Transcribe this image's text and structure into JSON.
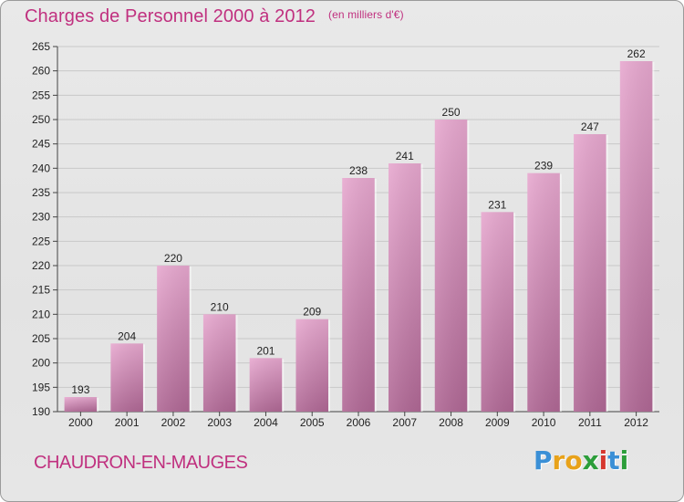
{
  "header": {
    "title": "Charges de Personnel 2000 à 2012",
    "subtitle": "(en milliers d'€)"
  },
  "footer": {
    "location": "CHAUDRON-EN-MAUGES",
    "logo_letters": [
      "P",
      "r",
      "o",
      "x",
      "i",
      "t",
      "i"
    ],
    "logo_colors": [
      "#3a8fd6",
      "#e8a21a",
      "#e8a21a",
      "#2c9e3a",
      "#d6372e",
      "#3a8fd6",
      "#2c9e3a"
    ]
  },
  "colors": {
    "title": "#c0307f",
    "bar_top": "#e7a8cf",
    "bar_bottom": "#b06895",
    "grid": "#c8c8c8"
  },
  "chart_data": {
    "type": "bar",
    "title": "Charges de Personnel 2000 à 2012",
    "subtitle": "(en milliers d'€)",
    "categories": [
      "2000",
      "2001",
      "2002",
      "2003",
      "2004",
      "2005",
      "2006",
      "2007",
      "2008",
      "2009",
      "2010",
      "2011",
      "2012"
    ],
    "values": [
      193,
      204,
      220,
      210,
      201,
      209,
      238,
      241,
      250,
      231,
      239,
      247,
      262
    ],
    "ylim": [
      190,
      265
    ],
    "yticks": [
      190,
      195,
      200,
      205,
      210,
      215,
      220,
      225,
      230,
      235,
      240,
      245,
      250,
      255,
      260,
      265
    ],
    "grid": true,
    "xlabel": "",
    "ylabel": ""
  }
}
